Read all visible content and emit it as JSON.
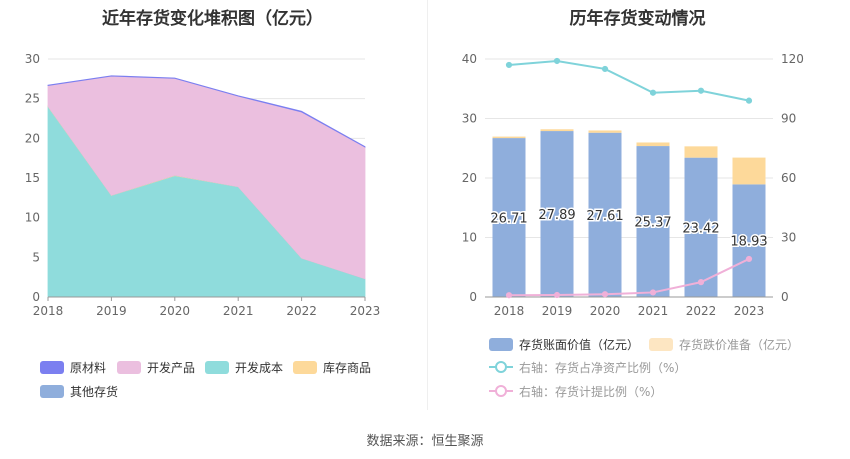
{
  "chart_data": [
    {
      "type": "area",
      "title": "近年存货变化堆积图（亿元）",
      "x": [
        "2018",
        "2019",
        "2020",
        "2021",
        "2022",
        "2023"
      ],
      "ylim": [
        0,
        30
      ],
      "yticks": [
        "0",
        "5",
        "10",
        "15",
        "20",
        "25",
        "30"
      ],
      "series": [
        {
          "name": "原材料",
          "color": "#7b7ff0",
          "values": [
            0.05,
            0.05,
            0.05,
            0.05,
            0.1,
            0.05
          ]
        },
        {
          "name": "开发产品",
          "color": "#ebbfdf",
          "values": [
            2.6,
            15.0,
            12.2,
            11.4,
            18.4,
            16.6
          ]
        },
        {
          "name": "开发成本",
          "color": "#8fdcdc",
          "values": [
            24.0,
            12.8,
            15.3,
            13.9,
            4.9,
            2.3
          ]
        },
        {
          "name": "库存商品",
          "color": "#fdd99a",
          "values": [
            0.06,
            0.04,
            0.06,
            0.02,
            0.02,
            0.0
          ]
        },
        {
          "name": "其他存货",
          "color": "#8faedc",
          "values": [
            0.0,
            0.0,
            0.0,
            0.0,
            0.0,
            0.0
          ]
        }
      ]
    },
    {
      "type": "bar+line",
      "title": "历年存货变动情况",
      "categories": [
        "2018",
        "2019",
        "2020",
        "2021",
        "2022",
        "2023"
      ],
      "ylim_left": [
        0,
        40
      ],
      "ylim_right": [
        0,
        120
      ],
      "yticks_left": [
        "0",
        "10",
        "20",
        "30",
        "40"
      ],
      "yticks_right": [
        "0",
        "30",
        "60",
        "90",
        "120"
      ],
      "bars_book": {
        "name": "存货账面价值（亿元）",
        "color": "#8faedc",
        "values": [
          26.71,
          27.89,
          27.61,
          25.37,
          23.42,
          18.93
        ],
        "labels": [
          "26.71",
          "27.89",
          "27.61",
          "25.37",
          "23.42",
          "18.93"
        ]
      },
      "bars_reserve": {
        "name": "存货跌价准备（亿元）",
        "color": "#fdd99a",
        "values": [
          0.25,
          0.3,
          0.38,
          0.6,
          1.9,
          4.5
        ]
      },
      "line_ratio": {
        "name": "右轴：存货占净资产比例（%）",
        "color": "#7fd3da",
        "values": [
          117,
          119,
          115,
          103,
          104,
          99
        ]
      },
      "line_provision": {
        "name": "右轴：存货计提比例（%）",
        "color": "#f0b0d8",
        "values": [
          0.9,
          1.0,
          1.4,
          2.3,
          7.5,
          19.2
        ]
      }
    }
  ],
  "source": "数据来源：恒生聚源"
}
